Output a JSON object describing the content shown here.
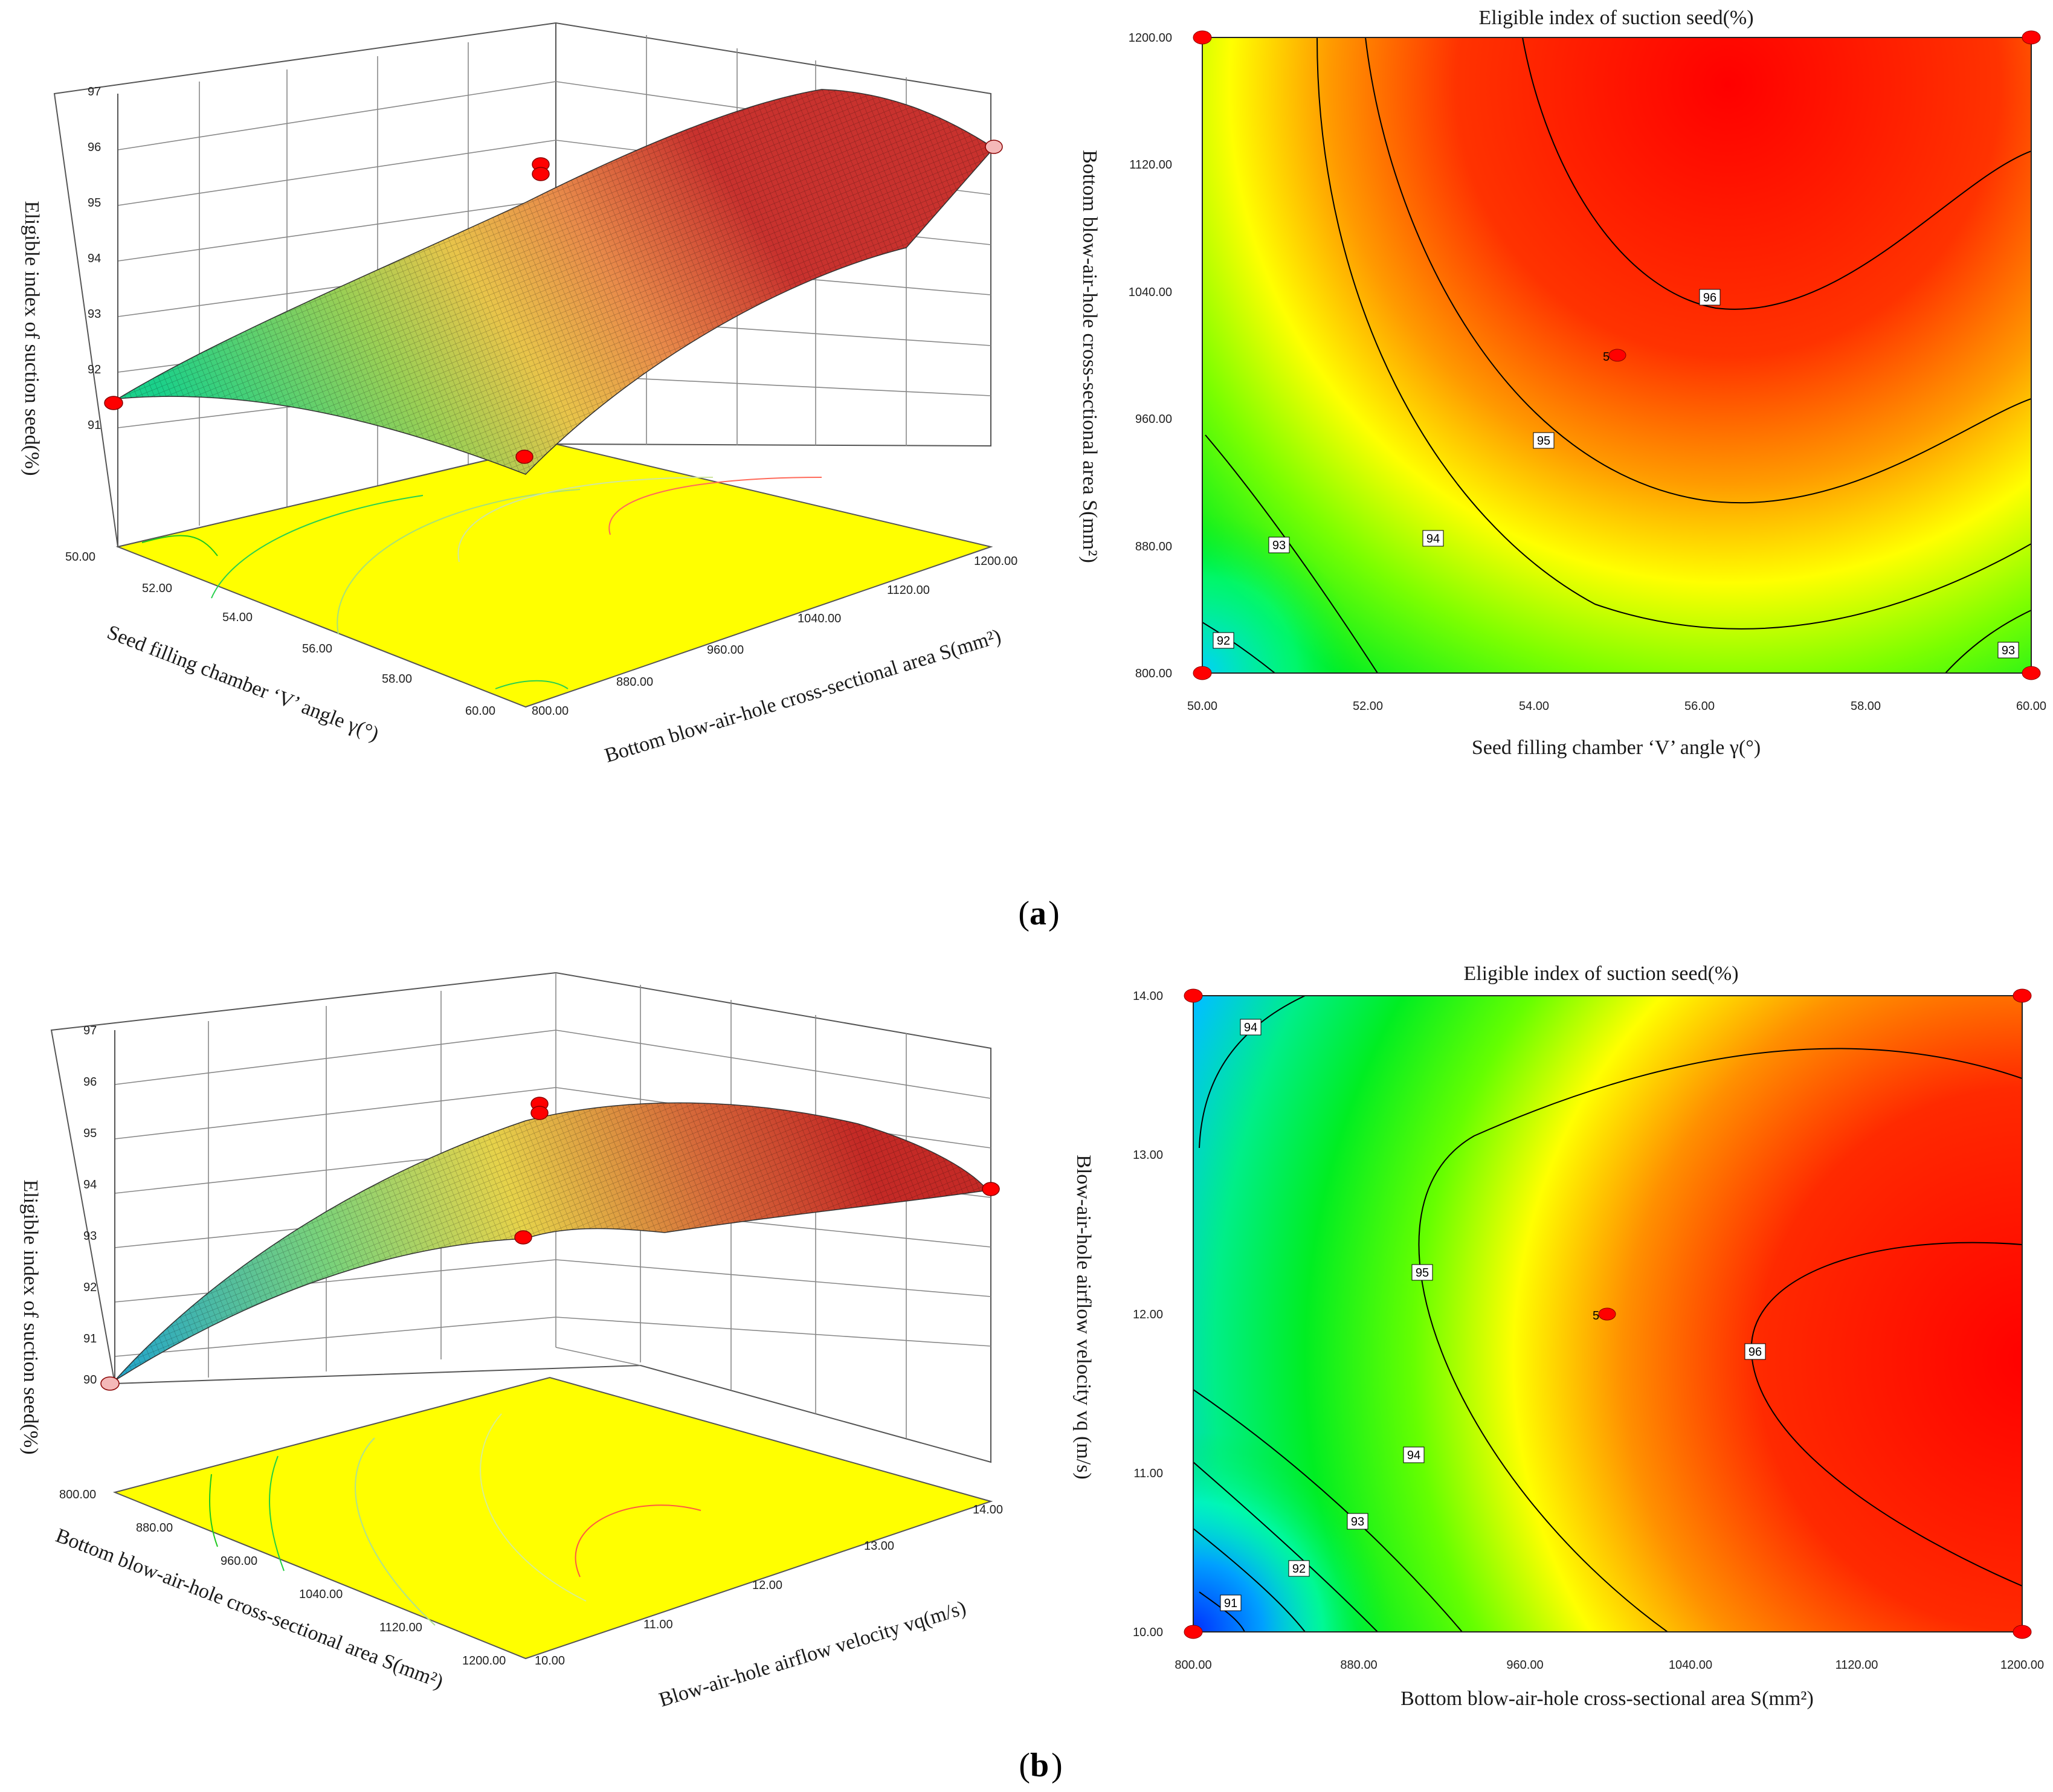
{
  "chart_data": [
    {
      "panel": "a",
      "type": "surface3d",
      "zlabel": "Eligible index of suction seed(%)",
      "xlabel": "Seed filling chamber ‘V’ angle γ(°)",
      "ylabel": "Bottom blow-air-hole cross-sectional area S(mm²)",
      "x_ticks": [
        "50.00",
        "52.00",
        "54.00",
        "56.00",
        "58.00",
        "60.00"
      ],
      "y_ticks": [
        "800.00",
        "880.00",
        "960.00",
        "1040.00",
        "1120.00",
        "1200.00"
      ],
      "z_ticks": [
        "91",
        "92",
        "93",
        "94",
        "95",
        "96",
        "97"
      ],
      "xlim": [
        50,
        60
      ],
      "ylim": [
        800,
        1200
      ],
      "zlim": [
        90,
        97
      ],
      "design_points": [
        {
          "x": 50,
          "y": 800,
          "z": 91.6
        },
        {
          "x": 55,
          "y": 1000,
          "z": 95.9
        },
        {
          "x": 55,
          "y": 1000,
          "z": 95.7
        },
        {
          "x": 60,
          "y": 800,
          "z": 90.8
        },
        {
          "x": 60,
          "y": 1200,
          "z": 95.9
        }
      ]
    },
    {
      "panel": "a",
      "type": "contour",
      "title": "Eligible index of suction seed(%)",
      "xlabel": "Seed filling chamber ‘V’ angle γ(°)",
      "ylabel": "Bottom blow-air-hole cross-sectional area S(mm²)",
      "x_ticks": [
        "50.00",
        "52.00",
        "54.00",
        "56.00",
        "58.00",
        "60.00"
      ],
      "y_ticks": [
        "800.00",
        "880.00",
        "960.00",
        "1040.00",
        "1120.00",
        "1200.00"
      ],
      "xlim": [
        50,
        60
      ],
      "ylim": [
        800,
        1200
      ],
      "contour_levels": [
        "92",
        "93",
        "94",
        "95",
        "96",
        "93"
      ],
      "center_label": "5",
      "center_point": {
        "x": 55,
        "y": 1000
      },
      "corner_points": [
        [
          50,
          800
        ],
        [
          50,
          1200
        ],
        [
          60,
          800
        ],
        [
          60,
          1200
        ]
      ]
    },
    {
      "panel": "b",
      "type": "surface3d",
      "zlabel": "Eligible index of suction seed(%)",
      "xlabel": "Bottom blow-air-hole cross-sectional area S(mm²)",
      "ylabel": "Blow-air-hole airflow velocity vq(m/s)",
      "x_ticks": [
        "800.00",
        "880.00",
        "960.00",
        "1040.00",
        "1120.00",
        "1200.00"
      ],
      "y_ticks": [
        "10.00",
        "11.00",
        "12.00",
        "13.00",
        "14.00"
      ],
      "z_ticks": [
        "90",
        "91",
        "92",
        "93",
        "94",
        "95",
        "96",
        "97"
      ],
      "xlim": [
        800,
        1200
      ],
      "ylim": [
        10,
        14
      ],
      "zlim": [
        90,
        97
      ],
      "design_points": [
        {
          "x": 800,
          "y": 10,
          "z": 90.0
        },
        {
          "x": 1000,
          "y": 12,
          "z": 95.8
        },
        {
          "x": 1000,
          "y": 12,
          "z": 95.6
        },
        {
          "x": 1200,
          "y": 10,
          "z": 93.2
        },
        {
          "x": 1200,
          "y": 14,
          "z": 94.0
        }
      ]
    },
    {
      "panel": "b",
      "type": "contour",
      "title": "Eligible index of suction seed(%)",
      "xlabel": "Bottom blow-air-hole cross-sectional area S(mm²)",
      "ylabel": "Blow-air-hole airflow velocity vq  (m/s)",
      "x_ticks": [
        "800.00",
        "880.00",
        "960.00",
        "1040.00",
        "1120.00",
        "1200.00"
      ],
      "y_ticks": [
        "10.00",
        "11.00",
        "12.00",
        "13.00",
        "14.00"
      ],
      "xlim": [
        800,
        1200
      ],
      "ylim": [
        10,
        14
      ],
      "contour_levels": [
        "91",
        "92",
        "93",
        "94",
        "94",
        "95",
        "96"
      ],
      "center_label": "5",
      "center_point": {
        "x": 1000,
        "y": 12
      },
      "corner_points": [
        [
          800,
          10
        ],
        [
          800,
          14
        ],
        [
          1200,
          10
        ],
        [
          1200,
          14
        ]
      ]
    }
  ],
  "captions": {
    "a": "a",
    "b": "b",
    "open": "(",
    "close": ")"
  },
  "colors": {
    "high": "#ff0000",
    "mid": "#ffff00",
    "low": "#00ff00",
    "min": "#0050ff",
    "floor": "#ffff00",
    "point": "#ff0000",
    "point_light": "#f4b8b8"
  }
}
